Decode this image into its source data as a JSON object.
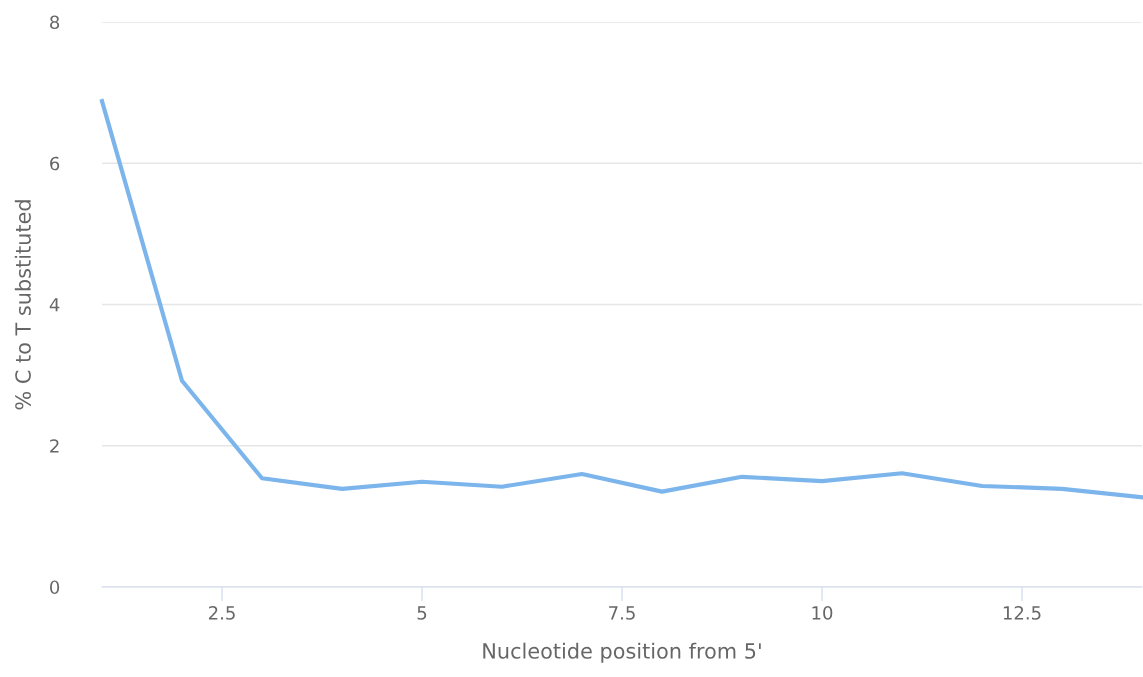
{
  "chart_data": {
    "type": "line",
    "xlabel": "Nucleotide position from 5'",
    "ylabel": "% C to T substituted",
    "x": [
      1,
      2,
      3,
      4,
      5,
      6,
      7,
      8,
      9,
      10,
      11,
      12,
      13,
      14
    ],
    "series": [
      {
        "color": "#7cb5ec",
        "values": [
          6.88,
          2.92,
          1.54,
          1.39,
          1.49,
          1.42,
          1.6,
          1.35,
          1.56,
          1.5,
          1.61,
          1.43,
          1.39,
          1.27
        ]
      }
    ],
    "xlim": [
      1,
      14
    ],
    "xticks": [
      2.5,
      5,
      7.5,
      10,
      12.5
    ],
    "ylim": [
      0,
      8
    ],
    "yticks": [
      0,
      2,
      4,
      6,
      8
    ],
    "grid": "y",
    "legend": false,
    "marker": "none",
    "line_style": "solid"
  }
}
